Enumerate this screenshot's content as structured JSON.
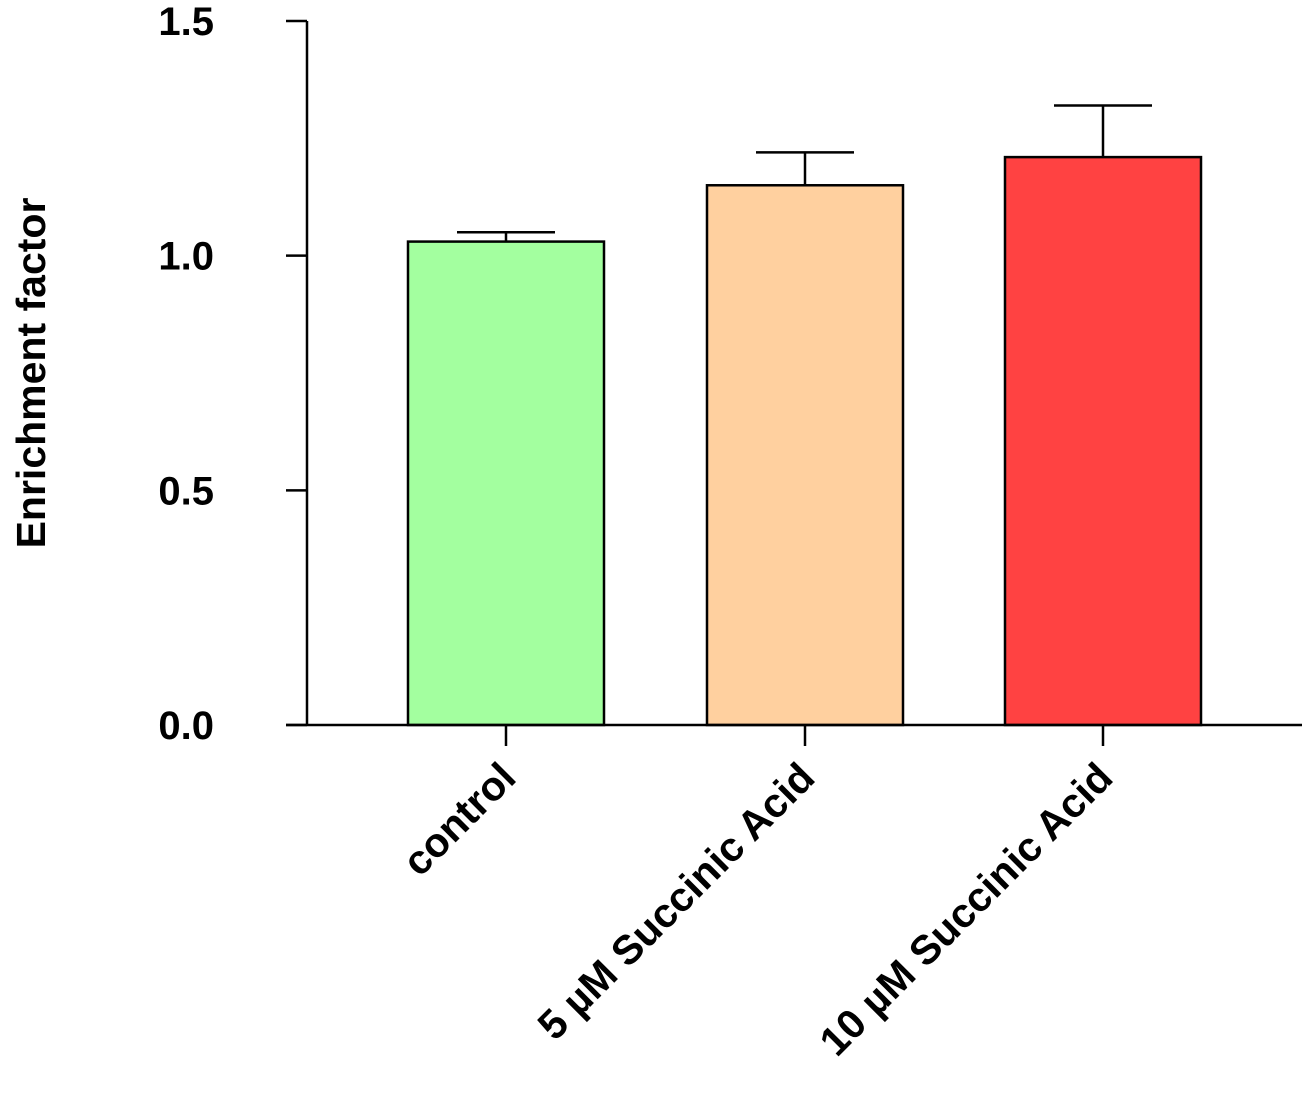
{
  "chart_data": {
    "type": "bar",
    "title": "",
    "xlabel": "",
    "ylabel": "Enrichment factor",
    "categories": [
      "control",
      "5 µM Succinic Acid",
      "10 µM Succinic Acid"
    ],
    "values": [
      1.03,
      1.15,
      1.21
    ],
    "error_upper": [
      0.02,
      0.07,
      0.11
    ],
    "colors": [
      "#a3ff9f",
      "#ffd09f",
      "#ff4242"
    ],
    "ylim": [
      0,
      1.5
    ],
    "yticks": [
      0.0,
      0.5,
      1.0,
      1.5
    ],
    "ytick_labels": [
      "0.0",
      "0.5",
      "1.0",
      "1.5"
    ],
    "grid": false,
    "legend": "none"
  }
}
